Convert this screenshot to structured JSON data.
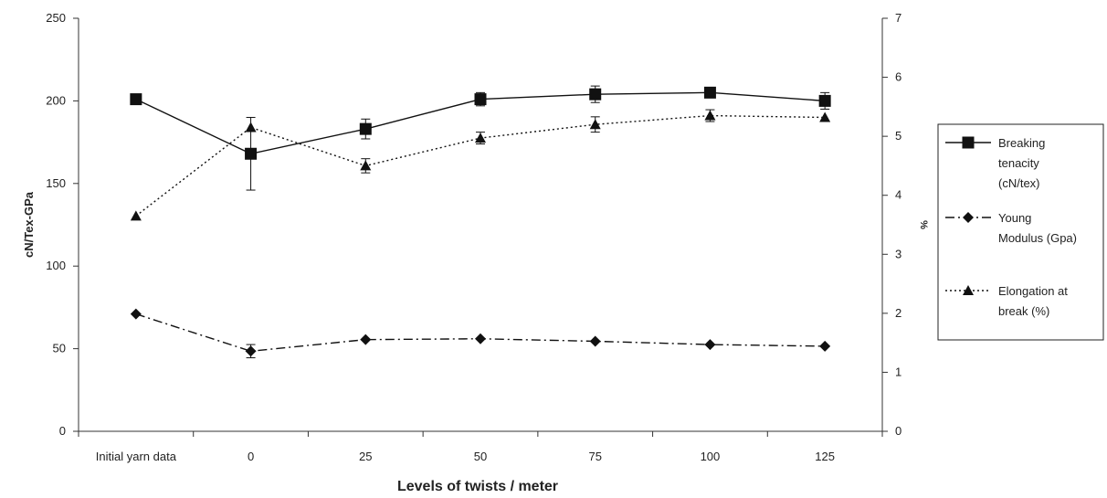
{
  "chart_data": {
    "type": "line",
    "categories": [
      "Initial yarn data",
      "0",
      "25",
      "50",
      "75",
      "100",
      "125"
    ],
    "xlabel": "Levels of twists / meter",
    "ylabel": "cN/Tex-GPa",
    "y2label": "%",
    "ylim": [
      0,
      250
    ],
    "y2lim": [
      0,
      7
    ],
    "yticks": [
      "0",
      "50",
      "100",
      "150",
      "200",
      "250"
    ],
    "y2ticks": [
      "0",
      "1",
      "2",
      "3",
      "4",
      "5",
      "6",
      "7"
    ],
    "grid": false,
    "legend_position": "right",
    "series": [
      {
        "name": "Breaking tenacity (cN/tex)",
        "legend_lines": [
          "Breaking",
          "tenacity",
          "(cN/tex)"
        ],
        "axis": "left",
        "marker": "square",
        "line_style": "solid",
        "values": [
          201,
          168,
          183,
          201,
          204,
          205,
          200
        ],
        "error": [
          null,
          22,
          6,
          4,
          5,
          3,
          5
        ]
      },
      {
        "name": "Young Modulus (Gpa)",
        "legend_lines": [
          "Young",
          "Modulus (Gpa)"
        ],
        "axis": "left",
        "marker": "diamond",
        "line_style": "dashdot",
        "values": [
          71,
          48.5,
          55.5,
          56,
          54.5,
          52.5,
          51.5
        ],
        "error": [
          null,
          4,
          null,
          null,
          null,
          null,
          null
        ]
      },
      {
        "name": "Elongation at break (%)",
        "legend_lines": [
          "Elongation at",
          "break (%)"
        ],
        "axis": "right",
        "marker": "triangle",
        "line_style": "dotted",
        "values": [
          3.65,
          5.15,
          4.5,
          4.97,
          5.2,
          5.35,
          5.32
        ],
        "error": [
          null,
          null,
          0.12,
          0.1,
          0.13,
          0.1,
          null
        ]
      }
    ]
  }
}
